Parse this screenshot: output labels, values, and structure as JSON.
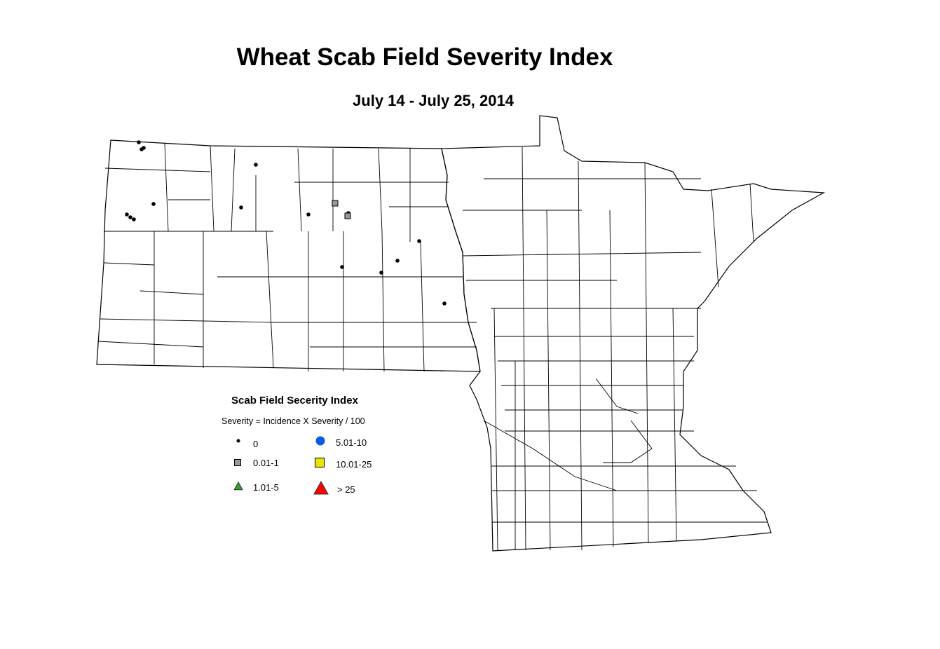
{
  "title": "Wheat Scab Field Severity Index",
  "subtitle": "July 14 - July 25, 2014",
  "legend": {
    "title": "Scab Field Secerity Index",
    "subtitle": "Severity = Incidence X Severity / 100",
    "items": [
      {
        "label": "0",
        "shape": "dot",
        "color": "#000000"
      },
      {
        "label": "0.01-1",
        "shape": "square",
        "color": "#999999"
      },
      {
        "label": "1.01-5",
        "shape": "triangle",
        "color": "#33a02c"
      },
      {
        "label": "5.01-10",
        "shape": "circle",
        "color": "#0a5ce0"
      },
      {
        "label": "10.01-25",
        "shape": "square",
        "color": "#e6e600"
      },
      {
        "label": "> 25",
        "shape": "triangle",
        "color": "#ff0000"
      }
    ]
  }
}
